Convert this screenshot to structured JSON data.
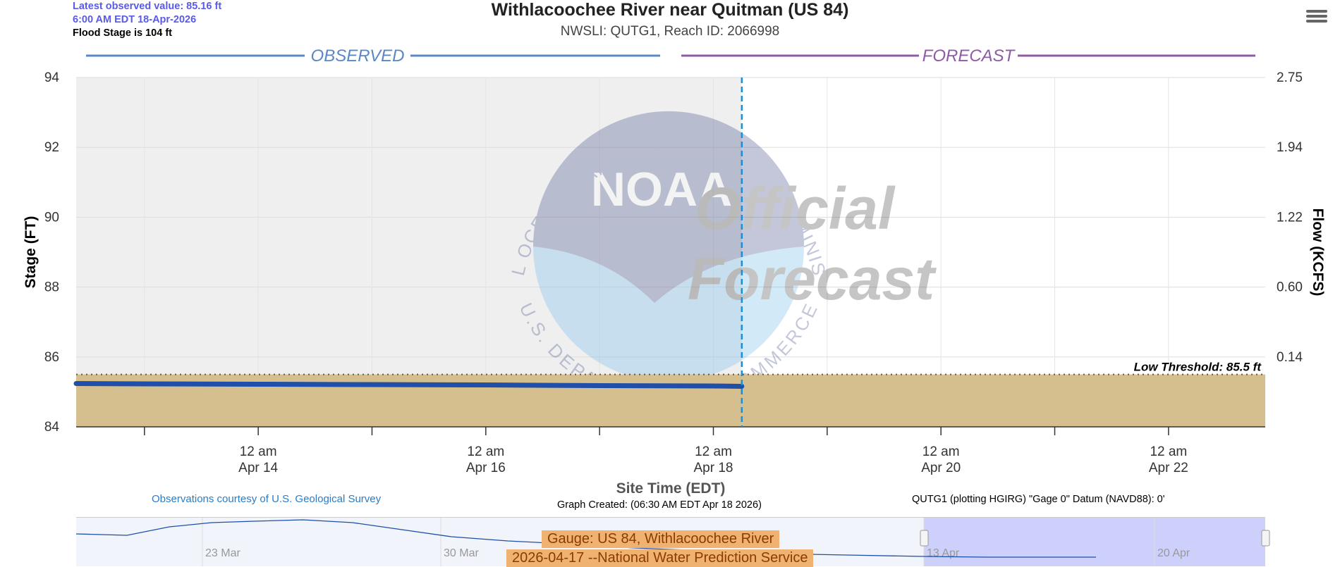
{
  "header": {
    "latest_value": "Latest observed value: 85.16 ft",
    "latest_time": "6:00 AM EDT 18-Apr-2026",
    "flood_stage": "Flood Stage is 104 ft"
  },
  "title": "Withlacoochee River near Quitman (US 84)",
  "subtitle": "NWSLI: QUTG1, Reach ID: 2066998",
  "watermark": {
    "noaa": "NOAA",
    "line1": "Official",
    "line2": "Forecast",
    "ring_top": "NATIONAL OCEANIC AND ATMOSPHERIC ADMINISTRATION",
    "ring_bottom": "U.S. DEPARTMENT OF COMMERCE"
  },
  "footer": {
    "courtesy": "Observations courtesy of U.S. Geological Survey",
    "created": "Graph Created: (06:30 AM EDT Apr 18 2026)",
    "datum": "QUTG1 (plotting HGIRG) \"Gage 0\" Datum (NAVD88): 0'"
  },
  "navigator": {
    "ticks": [
      "23 Mar",
      "30 Mar",
      "13 Apr",
      "20 Apr"
    ],
    "label1": "Gauge: US 84, Withlacoochee River",
    "label2": "2026-04-17 --National Water Prediction Service"
  },
  "colors": {
    "observed": "#1f4fa8",
    "forecast_band": "#8e5ba6",
    "observed_band": "#5a87c5",
    "low_fill": "#d6bf8e",
    "observed_bg": "#efefef",
    "now_line": "#1b8fd6"
  },
  "icons": {
    "menu": "hamburger-menu-icon"
  },
  "chart_data": {
    "type": "line",
    "title": "Withlacoochee River near Quitman (US 84)",
    "xlabel": "Site Time (EDT)",
    "ylabel": "Stage (FT)",
    "y2label": "Flow (KCFS)",
    "ylim": [
      84,
      94
    ],
    "yticks": [
      84,
      86,
      88,
      90,
      92,
      94
    ],
    "y2ticks": [
      "2.75",
      "1.94",
      "1.22",
      "0.60",
      "0.14"
    ],
    "x_range_days": [
      -5.6,
      4.85
    ],
    "x_tick_days": [
      -4,
      -2,
      0,
      2,
      4
    ],
    "x_tick_labels": [
      [
        "12 am",
        "Apr 14"
      ],
      [
        "12 am",
        "Apr 16"
      ],
      [
        "12 am",
        "Apr 18"
      ],
      [
        "12 am",
        "Apr 20"
      ],
      [
        "12 am",
        "Apr 22"
      ]
    ],
    "x_minor_days": [
      -5,
      -3,
      -1,
      1,
      3
    ],
    "now_day": 0.25,
    "sections": {
      "observed": "OBSERVED",
      "forecast": "FORECAST"
    },
    "low_threshold": {
      "value": 85.5,
      "label": "Low Threshold: 85.5 ft"
    },
    "grid": true,
    "series": [
      {
        "name": "Observed",
        "points": [
          [
            -5.6,
            85.24
          ],
          [
            -5.0,
            85.23
          ],
          [
            -4.0,
            85.22
          ],
          [
            -3.0,
            85.21
          ],
          [
            -2.0,
            85.2
          ],
          [
            -1.0,
            85.18
          ],
          [
            0.0,
            85.17
          ],
          [
            0.25,
            85.16
          ]
        ]
      }
    ]
  }
}
